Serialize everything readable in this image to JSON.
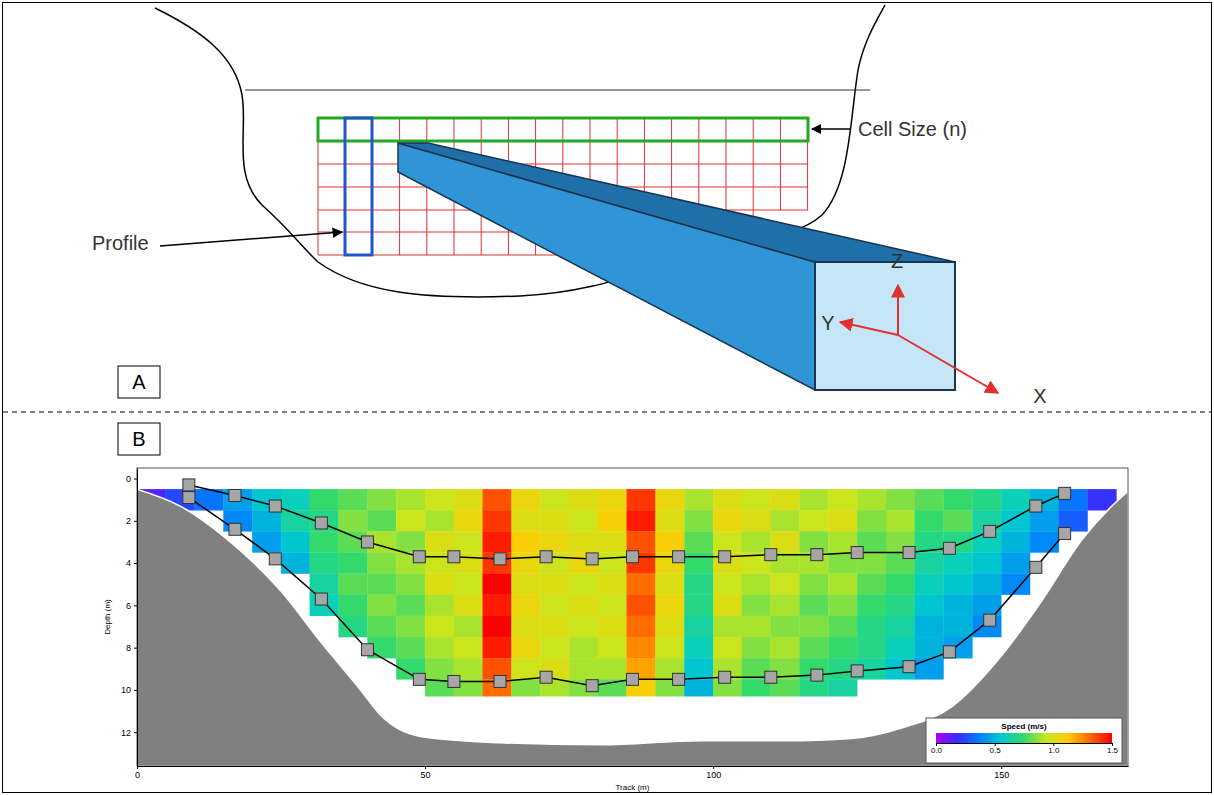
{
  "diagram": {
    "letter": "A",
    "profile_label": "Profile",
    "cell_size_label": "Cell Size (n)",
    "axis_labels": [
      "Z",
      "Y",
      "X"
    ]
  },
  "chart_letter": "B",
  "chart_data": {
    "type": "heatmap",
    "x_label": "Track (m)",
    "y_label": "Depth (m)",
    "xlim": [
      0,
      172
    ],
    "ylim": [
      -0.5,
      13.6
    ],
    "xticks": [
      0,
      50,
      100,
      150
    ],
    "yticks": [
      0,
      2,
      4,
      6,
      8,
      10,
      12
    ],
    "legend": "lower right",
    "xbins": [
      0,
      5,
      10,
      15,
      20,
      25,
      30,
      35,
      40,
      45,
      50,
      55,
      60,
      65,
      70,
      75,
      80,
      85,
      90,
      95,
      100,
      105,
      110,
      115,
      120,
      125,
      130,
      135,
      140,
      145,
      150,
      155,
      160,
      165,
      170
    ],
    "ybins": [
      0.5,
      1.5,
      2.5,
      3.5,
      4.5,
      5.5,
      6.5,
      7.5,
      8.5,
      9.5,
      10.3
    ],
    "z": [
      [
        0.15,
        0.25,
        0.35,
        0.45,
        0.55,
        0.6,
        0.75,
        0.8,
        0.85,
        0.9,
        0.95,
        1.0,
        1.35,
        1.05,
        0.95,
        1.0,
        1.05,
        1.4,
        1.05,
        0.9,
        1.0,
        0.95,
        1.0,
        0.9,
        0.95,
        0.9,
        0.85,
        0.8,
        0.75,
        0.7,
        0.6,
        0.5,
        0.35,
        0.2
      ],
      [
        null,
        null,
        null,
        0.4,
        0.5,
        0.65,
        0.7,
        0.85,
        0.8,
        0.95,
        0.9,
        1.05,
        1.4,
        1.0,
        1.0,
        0.95,
        1.1,
        1.45,
        1.0,
        0.85,
        1.05,
        1.0,
        0.9,
        0.95,
        1.0,
        0.85,
        0.9,
        0.75,
        0.8,
        0.65,
        0.55,
        0.45,
        0.3,
        null
      ],
      [
        null,
        null,
        null,
        null,
        0.45,
        0.55,
        0.75,
        0.8,
        0.9,
        0.85,
        1.0,
        0.95,
        1.45,
        1.1,
        1.05,
        1.0,
        1.0,
        1.35,
        1.1,
        0.8,
        0.95,
        0.9,
        1.0,
        0.85,
        0.9,
        0.8,
        0.85,
        0.7,
        0.7,
        0.6,
        0.5,
        0.4,
        null,
        null
      ],
      [
        null,
        null,
        null,
        null,
        null,
        0.5,
        0.7,
        0.75,
        0.85,
        0.9,
        0.95,
        1.0,
        1.4,
        1.05,
        0.95,
        1.05,
        0.95,
        1.4,
        1.05,
        0.75,
        1.0,
        0.95,
        0.9,
        0.9,
        0.85,
        0.85,
        0.8,
        0.65,
        0.6,
        0.55,
        0.45,
        null,
        null,
        null
      ],
      [
        null,
        null,
        null,
        null,
        null,
        null,
        0.65,
        0.8,
        0.8,
        0.85,
        1.0,
        0.95,
        1.5,
        1.0,
        1.0,
        0.95,
        1.0,
        1.3,
        1.0,
        0.7,
        0.95,
        0.9,
        0.95,
        0.85,
        0.9,
        0.8,
        0.75,
        0.6,
        0.55,
        0.5,
        0.4,
        null,
        null,
        null
      ],
      [
        null,
        null,
        null,
        null,
        null,
        null,
        0.6,
        0.75,
        0.85,
        0.8,
        0.9,
        1.0,
        1.45,
        1.05,
        0.95,
        1.0,
        0.95,
        1.35,
        1.05,
        0.7,
        1.0,
        0.85,
        0.9,
        0.8,
        0.85,
        0.75,
        0.7,
        0.55,
        0.5,
        0.45,
        null,
        null,
        null,
        null
      ],
      [
        null,
        null,
        null,
        null,
        null,
        null,
        null,
        0.7,
        0.8,
        0.85,
        0.95,
        0.9,
        1.5,
        1.0,
        1.0,
        0.95,
        1.0,
        1.3,
        1.0,
        0.65,
        0.9,
        0.9,
        0.85,
        0.85,
        0.8,
        0.7,
        0.65,
        0.5,
        0.5,
        0.4,
        null,
        null,
        null,
        null
      ],
      [
        null,
        null,
        null,
        null,
        null,
        null,
        null,
        null,
        0.75,
        0.8,
        0.9,
        0.95,
        1.45,
        1.05,
        0.95,
        0.9,
        0.95,
        1.25,
        0.95,
        0.6,
        0.95,
        0.85,
        0.9,
        0.8,
        0.75,
        0.7,
        0.6,
        0.5,
        0.45,
        null,
        null,
        null,
        null,
        null
      ],
      [
        null,
        null,
        null,
        null,
        null,
        null,
        null,
        null,
        null,
        0.75,
        0.85,
        0.9,
        1.35,
        0.95,
        1.0,
        0.9,
        0.9,
        1.2,
        0.9,
        0.55,
        0.9,
        0.8,
        0.85,
        0.75,
        0.7,
        0.65,
        0.55,
        0.45,
        null,
        null,
        null,
        null,
        null,
        null
      ],
      [
        null,
        null,
        null,
        null,
        null,
        null,
        null,
        null,
        null,
        null,
        0.8,
        0.85,
        1.3,
        0.85,
        0.9,
        0.85,
        0.8,
        1.1,
        0.85,
        0.5,
        0.85,
        0.75,
        0.8,
        0.7,
        0.65,
        null,
        null,
        null,
        null,
        null,
        null,
        null,
        null,
        null
      ]
    ],
    "colorbar": {
      "title": "Speed (m/s)",
      "range": [
        0,
        1.5
      ],
      "ticks": [
        {
          "value": 0,
          "label": "0.0"
        },
        {
          "value": 0.5,
          "label": "0.5"
        },
        {
          "value": 1,
          "label": "1.0"
        },
        {
          "value": 1.5,
          "label": "1.5"
        }
      ],
      "colors": [
        "#b300ff",
        "#3a2bff",
        "#0080ff",
        "#00cccc",
        "#33d96b",
        "#c8e61e",
        "#ffcc00",
        "#ff6600",
        "#ff0000"
      ]
    },
    "bed": {
      "color": "#808080",
      "x": [
        0,
        7.5,
        16.2,
        24.9,
        31.8,
        38.8,
        42.3,
        49.2,
        63,
        80.5,
        97.9,
        115.3,
        124,
        132.7,
        141.4,
        150,
        157,
        164,
        169.2,
        172
      ],
      "depth": [
        0.5,
        1.3,
        3.0,
        5.3,
        7.7,
        10.0,
        11.2,
        12.2,
        12.5,
        12.6,
        12.4,
        12.4,
        12.3,
        11.8,
        10.8,
        8.4,
        5.8,
        2.9,
        1.3,
        0.6
      ]
    },
    "series": [
      {
        "color": "#000000",
        "marker": "square",
        "x": [
          9,
          17,
          24,
          32,
          40,
          49,
          55,
          63,
          71,
          79,
          86,
          94,
          102,
          110,
          118,
          125,
          134,
          141,
          148,
          156,
          161
        ],
        "values": [
          0.3,
          0.8,
          1.3,
          2.1,
          3.0,
          3.7,
          3.7,
          3.8,
          3.7,
          3.8,
          3.7,
          3.7,
          3.7,
          3.6,
          3.6,
          3.5,
          3.5,
          3.3,
          2.5,
          1.3,
          0.7
        ]
      },
      {
        "color": "#000000",
        "marker": "square",
        "x": [
          9,
          17,
          24,
          32,
          40,
          49,
          55,
          63,
          71,
          79,
          86,
          94,
          102,
          110,
          118,
          125,
          134,
          141,
          148,
          156,
          161
        ],
        "values": [
          0.9,
          2.4,
          3.8,
          5.7,
          8.1,
          9.5,
          9.6,
          9.6,
          9.4,
          9.8,
          9.5,
          9.5,
          9.4,
          9.4,
          9.3,
          9.1,
          8.9,
          8.2,
          6.7,
          4.2,
          2.6
        ]
      }
    ]
  }
}
